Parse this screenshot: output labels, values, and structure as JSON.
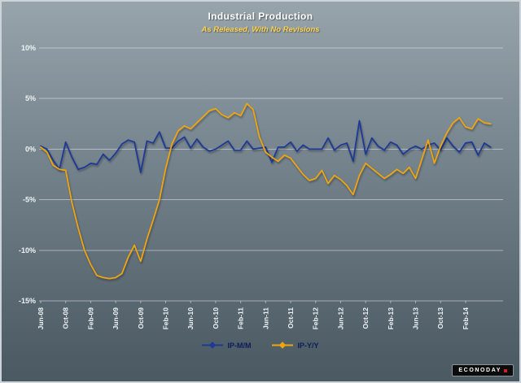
{
  "branding": {
    "logo_text": "ECONODAY"
  },
  "colors": {
    "subtitle": "#ffd24a",
    "legend_text": "#0d1c57",
    "mm_line": "#1e3a96",
    "yy_line": "#efa50f",
    "grid": "#e1e8ec",
    "axis_text": "#eef3f5",
    "logo_accent": "#d21f1f",
    "background_top": "#98a4ac",
    "background_bottom": "#4b5963"
  },
  "chart_data": {
    "type": "line",
    "title": "Industrial Production",
    "subtitle": "As Released, With No Revisions",
    "ylabel": "",
    "xlabel": "",
    "ylim": [
      -15,
      10
    ],
    "y_tick_values": [
      10,
      5,
      0,
      -5,
      -10,
      -15
    ],
    "grid": "horizontal",
    "legend_position": "bottom",
    "x_tick_every": 4,
    "x_tick_labels": [
      "Jun-08",
      "Oct-08",
      "Feb-09",
      "Jun-09",
      "Oct-09",
      "Feb-10",
      "Jun-10",
      "Oct-10",
      "Feb-11",
      "Jun-11",
      "Oct-11",
      "Feb-12",
      "Jun-12",
      "Oct-12",
      "Feb-13",
      "Jun-13",
      "Oct-13",
      "Feb-14"
    ],
    "categories": [
      "Jun-08",
      "Jul-08",
      "Aug-08",
      "Sep-08",
      "Oct-08",
      "Nov-08",
      "Dec-08",
      "Jan-09",
      "Feb-09",
      "Mar-09",
      "Apr-09",
      "May-09",
      "Jun-09",
      "Jul-09",
      "Aug-09",
      "Sep-09",
      "Oct-09",
      "Nov-09",
      "Dec-09",
      "Jan-10",
      "Feb-10",
      "Mar-10",
      "Apr-10",
      "May-10",
      "Jun-10",
      "Jul-10",
      "Aug-10",
      "Sep-10",
      "Oct-10",
      "Nov-10",
      "Dec-10",
      "Jan-11",
      "Feb-11",
      "Mar-11",
      "Apr-11",
      "May-11",
      "Jun-11",
      "Jul-11",
      "Aug-11",
      "Sep-11",
      "Oct-11",
      "Nov-11",
      "Dec-11",
      "Jan-12",
      "Feb-12",
      "Mar-12",
      "Apr-12",
      "May-12",
      "Jun-12",
      "Jul-12",
      "Aug-12",
      "Sep-12",
      "Oct-12",
      "Nov-12",
      "Dec-12",
      "Jan-13",
      "Feb-13",
      "Mar-13",
      "Apr-13",
      "May-13",
      "Jun-13",
      "Jul-13",
      "Aug-13",
      "Sep-13",
      "Oct-13",
      "Nov-13",
      "Dec-13",
      "Jan-14",
      "Feb-14",
      "Mar-14",
      "Apr-14",
      "May-14",
      "Jun-14"
    ],
    "series": [
      {
        "name": "IP-M/M",
        "color": "#1e3a96",
        "values": [
          0.3,
          0.0,
          -1.1,
          -2.0,
          0.7,
          -0.8,
          -2.0,
          -1.8,
          -1.4,
          -1.5,
          -0.5,
          -1.1,
          -0.4,
          0.5,
          0.9,
          0.7,
          -2.3,
          0.8,
          0.6,
          1.7,
          0.1,
          0.1,
          0.8,
          1.2,
          0.1,
          1.0,
          0.2,
          -0.2,
          0.0,
          0.4,
          0.8,
          -0.1,
          -0.1,
          0.8,
          0.0,
          0.1,
          0.2,
          -1.3,
          0.2,
          0.2,
          0.7,
          -0.2,
          0.4,
          0.0,
          0.0,
          0.0,
          1.1,
          -0.1,
          0.4,
          0.6,
          -1.2,
          2.8,
          -0.5,
          1.1,
          0.3,
          -0.1,
          0.7,
          0.4,
          -0.5,
          0.0,
          0.3,
          0.0,
          0.4,
          0.6,
          -0.1,
          1.1,
          0.3,
          -0.3,
          0.6,
          0.7,
          -0.6,
          0.6,
          0.2
        ]
      },
      {
        "name": "IP-Y/Y",
        "color": "#efa50f",
        "values": [
          0.2,
          -0.3,
          -1.6,
          -2.0,
          -2.1,
          -5.3,
          -7.8,
          -10.0,
          -11.4,
          -12.5,
          -12.7,
          -12.8,
          -12.7,
          -12.3,
          -10.7,
          -9.5,
          -11.1,
          -8.9,
          -7.0,
          -5.0,
          -1.9,
          0.5,
          1.8,
          2.3,
          2.0,
          2.6,
          3.2,
          3.8,
          4.0,
          3.4,
          3.1,
          3.6,
          3.3,
          4.5,
          3.9,
          1.2,
          -0.3,
          -0.8,
          -1.2,
          -0.6,
          -0.9,
          -1.7,
          -2.5,
          -3.1,
          -2.9,
          -2.1,
          -3.4,
          -2.6,
          -3.0,
          -3.6,
          -4.5,
          -2.6,
          -1.4,
          -1.9,
          -2.4,
          -2.9,
          -2.5,
          -2.0,
          -2.4,
          -1.8,
          -2.9,
          -1.0,
          0.9,
          -1.4,
          0.3,
          1.6,
          2.6,
          3.1,
          2.2,
          2.0,
          3.0,
          2.6,
          2.5
        ]
      }
    ]
  }
}
